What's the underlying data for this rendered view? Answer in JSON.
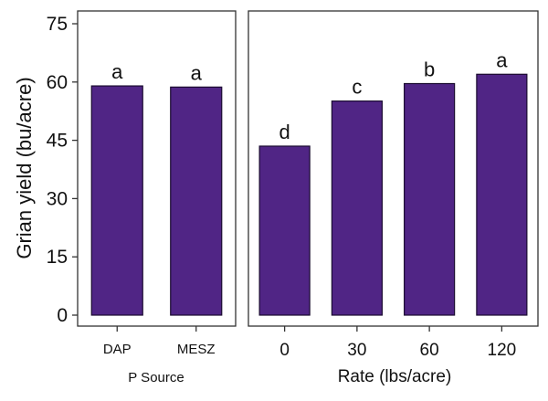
{
  "chart_data": {
    "type": "bar",
    "ylabel": "Grian yield (bu/acre)",
    "ylim": [
      0,
      75
    ],
    "yticks": [
      0,
      15,
      30,
      45,
      60,
      75
    ],
    "bar_color": "#502585",
    "panels": [
      {
        "xlabel": "P Source",
        "categories": [
          "DAP",
          "MESZ"
        ],
        "values": [
          59,
          58.7
        ],
        "labels": [
          "a",
          "a"
        ]
      },
      {
        "xlabel": "Rate (lbs/acre)",
        "categories": [
          "0",
          "30",
          "60",
          "120"
        ],
        "values": [
          43.5,
          55.1,
          59.6,
          62
        ],
        "labels": [
          "d",
          "c",
          "b",
          "a"
        ]
      }
    ]
  }
}
